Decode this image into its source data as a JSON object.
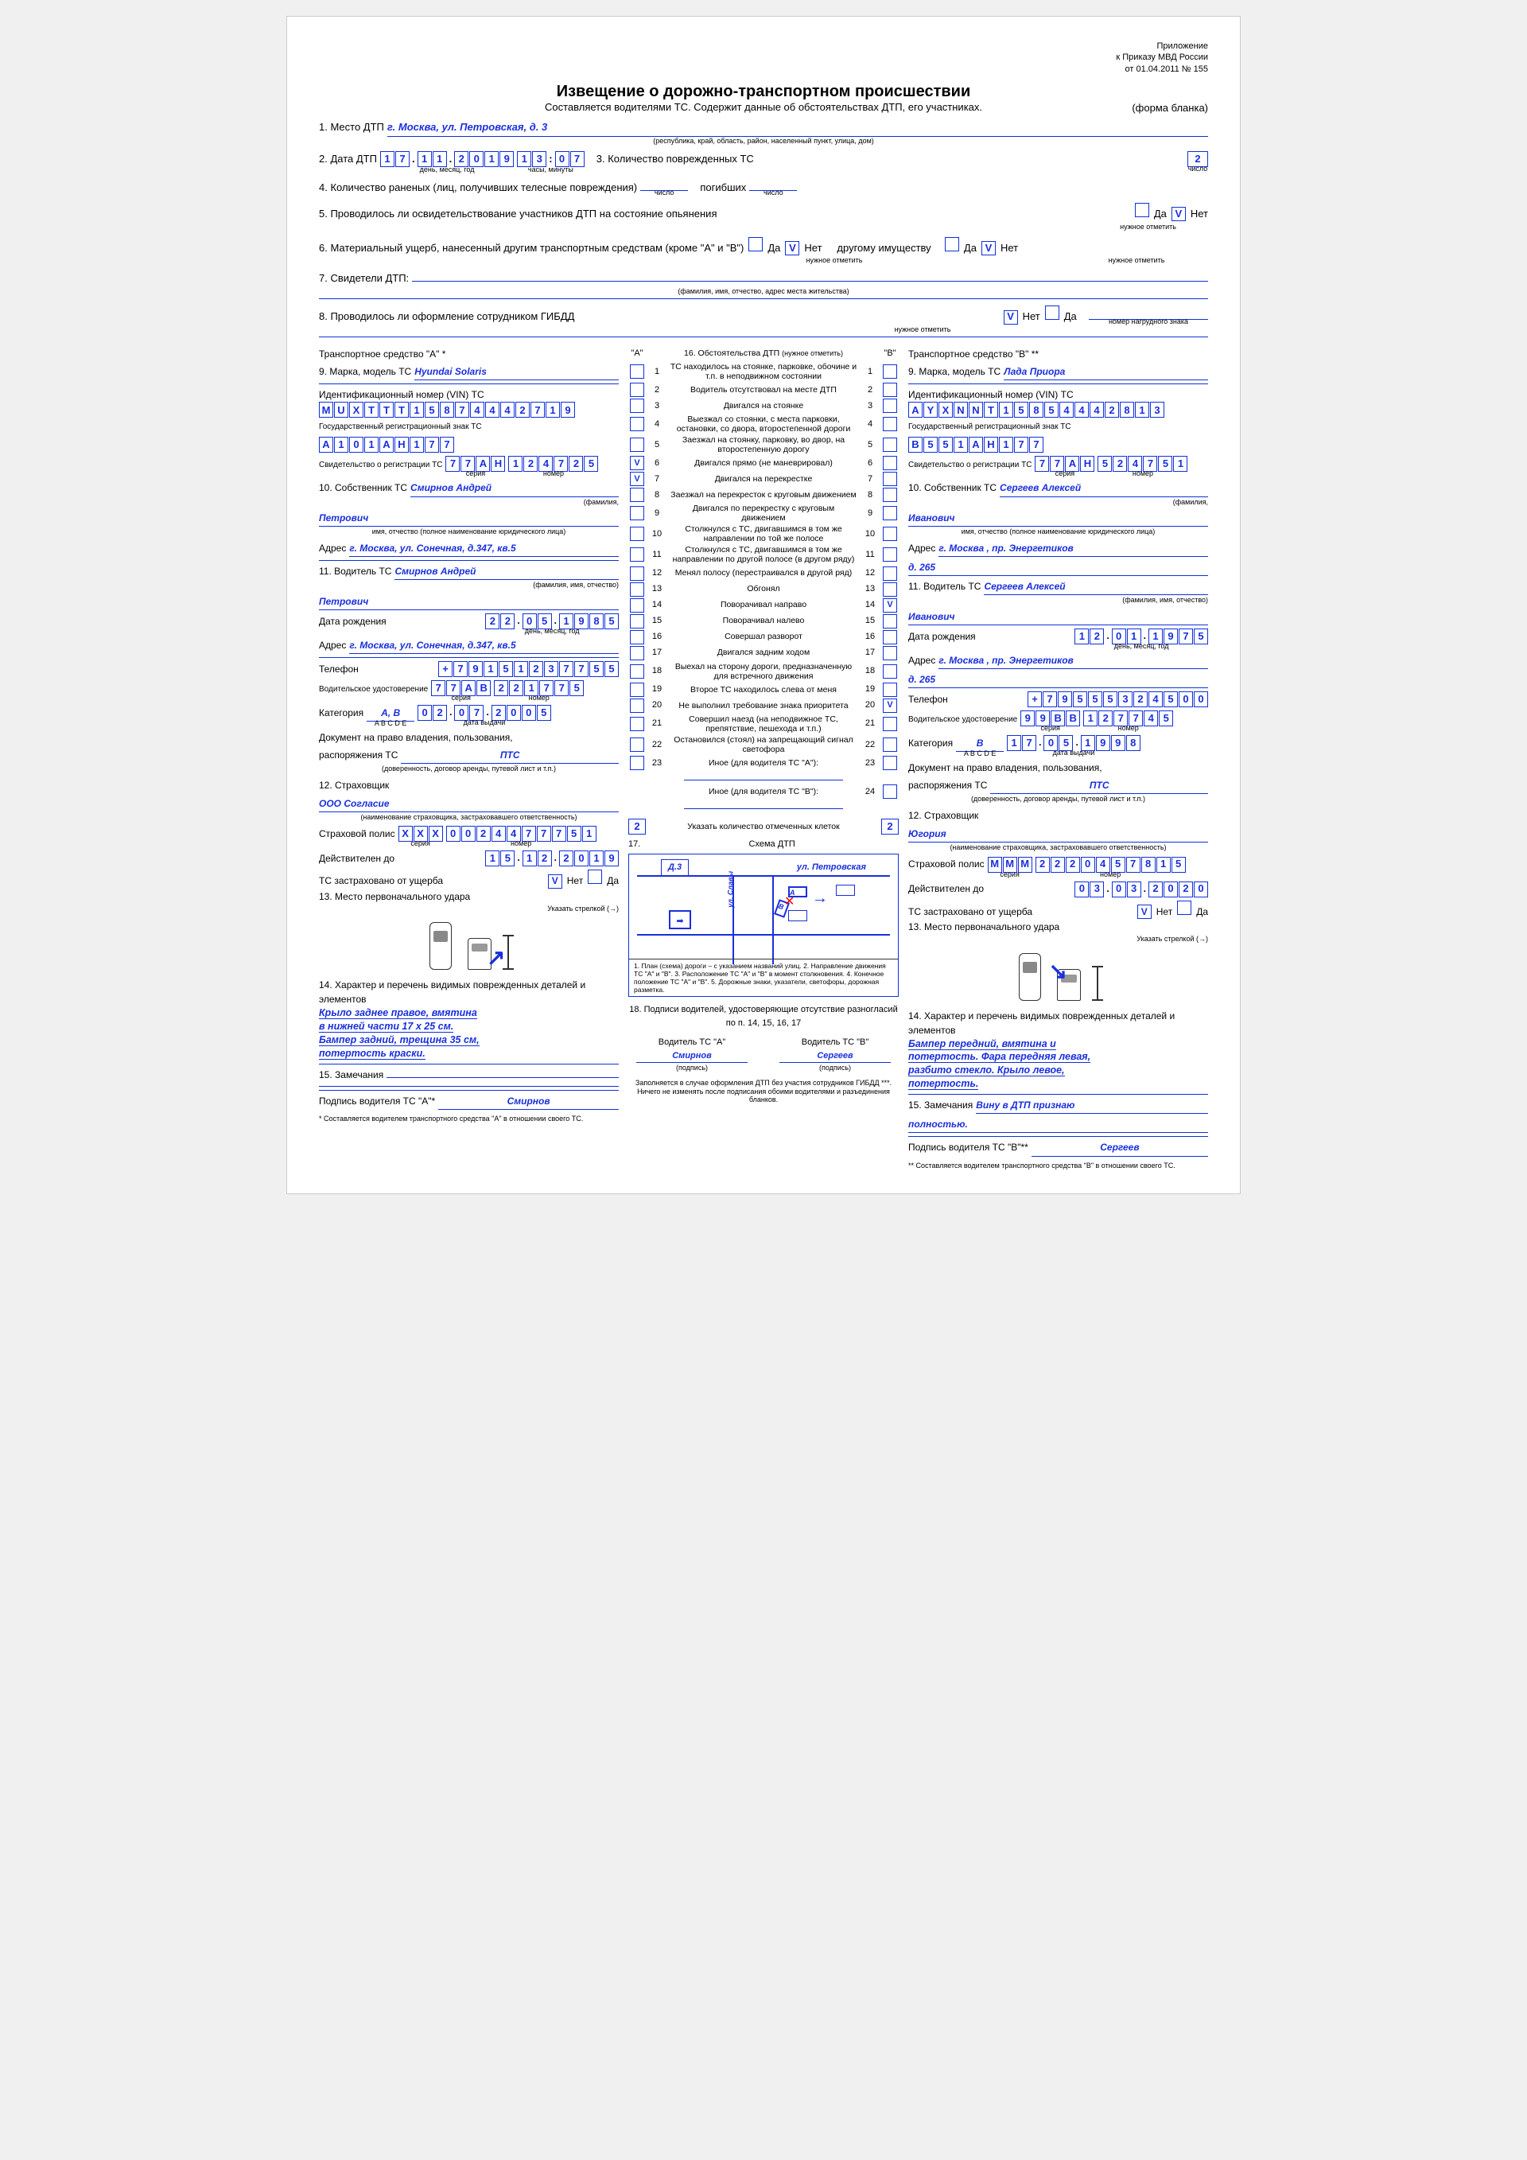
{
  "annex": {
    "l1": "Приложение",
    "l2": "к Приказу МВД России",
    "l3": "от 01.04.2011 № 155"
  },
  "title": "Извещение о дорожно-транспортном происшествии",
  "subtitle": "Составляется водителями ТС. Содержит данные об обстоятельствах ДТП, его участниках.",
  "form_note": "(форма бланка)",
  "q1": {
    "label": "1. Место ДТП",
    "val": "г. Москва, ул. Петровская, д. 3",
    "sub": "(республика, край, область, район, населенный пункт, улица, дом)"
  },
  "q2": {
    "label": "2. Дата ДТП",
    "date": [
      "1",
      "7",
      ".",
      "1",
      "1",
      ".",
      "2",
      "0",
      "1",
      "9"
    ],
    "time": [
      "1",
      "3",
      ":",
      "0",
      "7"
    ],
    "sub_date": "день, месяц, год",
    "sub_time": "часы, минуты"
  },
  "q3": {
    "label": "3. Количество поврежденных ТС",
    "val": "2",
    "sub": "число"
  },
  "q4": {
    "label": "4. Количество раненых (лиц, получивших телесные повреждения)",
    "injured": "",
    "sub1": "число",
    "dead_label": "погибших",
    "dead": "",
    "sub2": "число"
  },
  "q5": {
    "label": "5. Проводилось ли освидетельствование участников ДТП на состояние опьянения",
    "yes": "Да",
    "no": "Нет",
    "no_checked": "V",
    "sub": "нужное отметить"
  },
  "q6": {
    "label": "6. Материальный ущерб, нанесенный другим транспортным средствам (кроме \"А\" и \"В\")",
    "yes": "Да",
    "no": "Нет",
    "no_checked": "V",
    "other": "другому имуществу",
    "other_yes": "Да",
    "other_no": "Нет",
    "other_no_checked": "V",
    "sub": "нужное отметить"
  },
  "q7": {
    "label": "7. Свидетели ДТП:",
    "sub": "(фамилия, имя, отчество, адрес места жительства)"
  },
  "q8": {
    "label": "8. Проводилось ли оформление сотрудником ГИБДД",
    "no": "Нет",
    "no_checked": "V",
    "yes": "Да",
    "sub": "нужное отметить",
    "badge_sub": "номер нагрудного знака"
  },
  "circ_header": {
    "a": "\"А\"",
    "title": "16. Обстоятельства ДТП",
    "note": "(нужное отметить)",
    "b": "\"В\""
  },
  "circ": [
    {
      "n": "1",
      "t": "ТС находилось на стоянке, парковке, обочине и т.п. в неподвижном состоянии"
    },
    {
      "n": "2",
      "t": "Водитель отсутствовал на месте ДТП"
    },
    {
      "n": "3",
      "t": "Двигался на стоянке"
    },
    {
      "n": "4",
      "t": "Выезжал со стоянки, с места парковки, остановки, со двора, второстепенной дороги"
    },
    {
      "n": "5",
      "t": "Заезжал на стоянку, парковку, во двор, на второстепенную дорогу"
    },
    {
      "n": "6",
      "t": "Двигался прямо (не маневрировал)",
      "a": "V"
    },
    {
      "n": "7",
      "t": "Двигался на перекрестке",
      "a": "V"
    },
    {
      "n": "8",
      "t": "Заезжал на перекресток с круговым движением"
    },
    {
      "n": "9",
      "t": "Двигался по перекрестку с круговым движением"
    },
    {
      "n": "10",
      "t": "Столкнулся с ТС, двигавшимся в том же направлении по той же полосе"
    },
    {
      "n": "11",
      "t": "Столкнулся с ТС, двигавшимся в том же направлении по другой полосе (в другом ряду)"
    },
    {
      "n": "12",
      "t": "Менял полосу (перестраивался в другой ряд)"
    },
    {
      "n": "13",
      "t": "Обгонял"
    },
    {
      "n": "14",
      "t": "Поворачивал направо",
      "b": "V"
    },
    {
      "n": "15",
      "t": "Поворачивал налево"
    },
    {
      "n": "16",
      "t": "Совершал разворот"
    },
    {
      "n": "17",
      "t": "Двигался задним ходом"
    },
    {
      "n": "18",
      "t": "Выехал на сторону дороги, предназначенную для встречного движения"
    },
    {
      "n": "19",
      "t": "Второе ТС находилось слева от меня"
    },
    {
      "n": "20",
      "t": "Не выполнил требование знака приоритета",
      "b": "V"
    },
    {
      "n": "21",
      "t": "Совершил наезд (на неподвижное ТС, препятствие, пешехода и т.п.)"
    },
    {
      "n": "22",
      "t": "Остановился (стоял) на запрещающий сигнал светофора"
    },
    {
      "n": "23",
      "t": "Иное (для водителя ТС \"А\"):"
    }
  ],
  "circ24": {
    "n": "24",
    "t": "Иное (для водителя ТС \"В\"):"
  },
  "circ_count": {
    "a": "2",
    "b": "2",
    "label": "Указать количество отмеченных клеток"
  },
  "scheme": {
    "num": "17.",
    "label": "Схема ДТП",
    "house": "Д.3",
    "street": "ул. Петровская",
    "cross": "ул. Славы",
    "a": "А",
    "b": "В",
    "notes": "1. План (схема) дороги – с указанием названий улиц.   2. Направление движения ТС \"А\" и \"В\".   3. Расположение ТС \"А\" и \"В\" в момент столкновения.   4. Конечное положение ТС \"А\" и \"В\".   5. Дорожные знаки, указатели, светофоры, дорожная разметка."
  },
  "q18": {
    "title": "18. Подписи водителей, удостоверяющие отсутствие разногласий по п. 14, 15, 16, 17",
    "a_label": "Водитель ТС \"А\"",
    "b_label": "Водитель ТС \"В\"",
    "a_sig": "Смирнов",
    "b_sig": "Сергеев",
    "sub": "(подпись)",
    "note": "Заполняется в случае оформления ДТП без участия сотрудников ГИБДД ***. Ничего не изменять после подписания обоими водителями и разъединения бланков."
  },
  "A": {
    "header": "Транспортное средство \"А\" *",
    "q9": {
      "label": "9. Марка, модель ТС",
      "val": "Hyundai Solaris"
    },
    "vin": {
      "label": "Идентификационный номер (VIN) ТС",
      "val": [
        "M",
        "U",
        "X",
        "T",
        "T",
        "T",
        "1",
        "5",
        "8",
        "7",
        "4",
        "4",
        "4",
        "2",
        "7",
        "1",
        "9"
      ]
    },
    "reg": {
      "label": "Государственный регистрационный знак ТС",
      "val": [
        "А",
        "1",
        "0",
        "1",
        "А",
        "Н",
        "1",
        "7",
        "7"
      ]
    },
    "cert": {
      "label": "Свидетельство о регистрации ТС",
      "ser": [
        "7",
        "7",
        "А",
        "Н"
      ],
      "num": [
        "1",
        "2",
        "4",
        "7",
        "2",
        "5"
      ],
      "sub_s": "серия",
      "sub_n": "номер"
    },
    "q10": {
      "label": "10. Собственник ТС",
      "val": "Смирнов Андрей",
      "val2": "Петрович",
      "sub": "(фамилия,",
      "sub2": "имя, отчество (полное наименование юридического лица)"
    },
    "addr": {
      "label": "Адрес",
      "val": "г. Москва, ул. Сонечная, д.347, кв.5"
    },
    "q11": {
      "label": "11. Водитель ТС",
      "val": "Смирнов Андрей",
      "val2": "Петрович",
      "sub": "(фамилия, имя, отчество)"
    },
    "dob": {
      "label": "Дата рождения",
      "val": [
        "2",
        "2",
        ".",
        "0",
        "5",
        ".",
        "1",
        "9",
        "8",
        "5"
      ],
      "sub": "день, месяц, год"
    },
    "addr2": {
      "label": "Адрес",
      "val": "г. Москва, ул. Сонечная, д.347, кв.5"
    },
    "tel": {
      "label": "Телефон",
      "val": [
        "+",
        "7",
        "9",
        "1",
        "5",
        "1",
        "2",
        "3",
        "7",
        "7",
        "5",
        "5"
      ]
    },
    "lic": {
      "label": "Водительское удостоверение",
      "ser": [
        "7",
        "7",
        "А",
        "В"
      ],
      "num": [
        "2",
        "2",
        "1",
        "7",
        "7",
        "5"
      ]
    },
    "cat": {
      "label": "Категория",
      "val": "А, В",
      "scale": "A B C D E",
      "date": [
        "0",
        "2",
        ".",
        "0",
        "7",
        ".",
        "2",
        "0",
        "0",
        "5"
      ],
      "sub": "дата выдачи"
    },
    "doc": {
      "l1": "Документ на право владения, пользования,",
      "l2": "распоряжения ТС",
      "val": "ПТС",
      "sub": "(доверенность, договор аренды, путевой лист и т.п.)"
    },
    "q12": {
      "label": "12. Страховщик",
      "val": "ООО Согласие",
      "sub": "(наименование страховщика, застраховавшего ответственность)"
    },
    "pol": {
      "label": "Страховой полис",
      "ser": [
        "Х",
        "Х",
        "Х"
      ],
      "num": [
        "0",
        "0",
        "2",
        "4",
        "4",
        "7",
        "7",
        "7",
        "5",
        "1"
      ]
    },
    "valid": {
      "label": "Действителен до",
      "val": [
        "1",
        "5",
        ".",
        "1",
        "2",
        ".",
        "2",
        "0",
        "1",
        "9"
      ]
    },
    "ins": {
      "label": "ТС застраховано от ущерба",
      "no": "Нет",
      "no_v": "V",
      "yes": "Да"
    },
    "q13": {
      "label": "13. Место первоначального удара",
      "sub": "Указать стрелкой (→)"
    },
    "q14": {
      "label": "14. Характер и перечень видимых поврежденных деталей и элементов",
      "lines": [
        "Крыло заднее правое, вмятина",
        "в нижней части 17 х 25 см.",
        "Бампер задний, трещина 35 см,",
        "потертость краски."
      ]
    },
    "q15": {
      "label": "15. Замечания",
      "val": ""
    },
    "sig": {
      "label": "Подпись водителя ТС \"А\"*",
      "val": "Смирнов",
      "note": "* Составляется водителем транспортного средства \"А\" в отношении своего ТС."
    }
  },
  "B": {
    "header": "Транспортное средство \"В\" **",
    "q9": {
      "label": "9. Марка, модель ТС",
      "val": "Лада Приора"
    },
    "vin": {
      "label": "Идентификационный номер (VIN) ТС",
      "val": [
        "А",
        "Y",
        "X",
        "N",
        "N",
        "T",
        "1",
        "5",
        "8",
        "5",
        "4",
        "4",
        "4",
        "2",
        "8",
        "1",
        "3"
      ]
    },
    "reg": {
      "label": "Государственный регистрационный знак ТС",
      "val": [
        "В",
        "5",
        "5",
        "1",
        "А",
        "Н",
        "1",
        "7",
        "7"
      ]
    },
    "cert": {
      "label": "Свидетельство о регистрации ТС",
      "ser": [
        "7",
        "7",
        "А",
        "Н"
      ],
      "num": [
        "5",
        "2",
        "4",
        "7",
        "5",
        "1"
      ],
      "sub_s": "серия",
      "sub_n": "номер"
    },
    "q10": {
      "label": "10. Собственник ТС",
      "val": "Сергеев Алексей",
      "val2": "Иванович",
      "sub": "(фамилия,",
      "sub2": "имя, отчество (полное наименование юридического лица)"
    },
    "addr": {
      "label": "Адрес",
      "val": "г. Москва , пр. Энергетиков",
      "val2": "д. 265"
    },
    "q11": {
      "label": "11. Водитель ТС",
      "val": "Сергеев Алексей",
      "val2": "Иванович",
      "sub": "(фамилия, имя, отчество)"
    },
    "dob": {
      "label": "Дата рождения",
      "val": [
        "1",
        "2",
        ".",
        "0",
        "1",
        ".",
        "1",
        "9",
        "7",
        "5"
      ],
      "sub": "день, месяц, год"
    },
    "addr2": {
      "label": "Адрес",
      "val": "г. Москва , пр. Энергетиков",
      "val2": "д. 265"
    },
    "tel": {
      "label": "Телефон",
      "val": [
        "+",
        "7",
        "9",
        "5",
        "5",
        "5",
        "3",
        "2",
        "4",
        "5",
        "0",
        "0"
      ]
    },
    "lic": {
      "label": "Водительское удостоверение",
      "ser": [
        "9",
        "9",
        "В",
        "В"
      ],
      "num": [
        "1",
        "2",
        "7",
        "7",
        "4",
        "5"
      ]
    },
    "cat": {
      "label": "Категория",
      "val": "В",
      "scale": "A B C D E",
      "date": [
        "1",
        "7",
        ".",
        "0",
        "5",
        ".",
        "1",
        "9",
        "9",
        "8"
      ],
      "sub": "дата выдачи"
    },
    "doc": {
      "l1": "Документ на право владения, пользования,",
      "l2": "распоряжения ТС",
      "val": "ПТС",
      "sub": "(доверенность, договор аренды, путевой лист и т.п.)"
    },
    "q12": {
      "label": "12. Страховщик",
      "val": "Югория",
      "sub": "(наименование страховщика, застраховавшего ответственность)"
    },
    "pol": {
      "label": "Страховой полис",
      "ser": [
        "М",
        "М",
        "М"
      ],
      "num": [
        "2",
        "2",
        "2",
        "0",
        "4",
        "5",
        "7",
        "8",
        "1",
        "5"
      ]
    },
    "valid": {
      "label": "Действителен до",
      "val": [
        "0",
        "3",
        ".",
        "0",
        "3",
        ".",
        "2",
        "0",
        "2",
        "0"
      ]
    },
    "ins": {
      "label": "ТС застраховано от ущерба",
      "no": "Нет",
      "no_v": "V",
      "yes": "Да"
    },
    "q13": {
      "label": "13. Место первоначального удара",
      "sub": "Указать стрелкой (→)"
    },
    "q14": {
      "label": "14. Характер и перечень видимых поврежденных деталей и элементов",
      "lines": [
        "Бампер передний, вмятина и",
        "потертость. Фара передняя левая,",
        "разбито стекло. Крыло левое,",
        "потертость."
      ]
    },
    "q15": {
      "label": "15. Замечания",
      "val": "Вину в ДТП признаю",
      "val2": "полностью."
    },
    "sig": {
      "label": "Подпись водителя ТС \"В\"**",
      "val": "Сергеев",
      "note": "** Составляется водителем транспортного средства \"В\" в отношении своего ТС."
    }
  }
}
